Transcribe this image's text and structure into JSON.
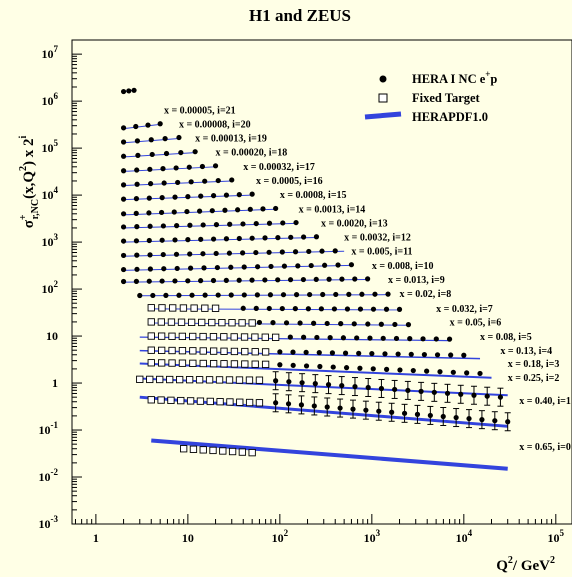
{
  "chart_data": {
    "type": "scatter",
    "title": "H1 and ZEUS",
    "ylabel": {
      "main": "σ",
      "sup": "+",
      "sub": "r,NC",
      "rest": "(x,Q",
      "sup2": "2",
      "rest2": ") x 2",
      "sup3": "i"
    },
    "xlabel": {
      "main": "Q",
      "sup": "2",
      "rest": "/ GeV",
      "sup2": "2"
    },
    "x_scale": "log",
    "y_scale": "log",
    "xlim": [
      0.55,
      150000
    ],
    "ylim": [
      0.001,
      20000000
    ],
    "x_ticks": [
      {
        "v": 1,
        "base": "1",
        "exp": ""
      },
      {
        "v": 10,
        "base": "10",
        "exp": ""
      },
      {
        "v": 100,
        "base": "10",
        "exp": "2"
      },
      {
        "v": 1000,
        "base": "10",
        "exp": "3"
      },
      {
        "v": 10000,
        "base": "10",
        "exp": "4"
      },
      {
        "v": 100000,
        "base": "10",
        "exp": "5"
      }
    ],
    "y_ticks": [
      {
        "v": 0.001,
        "base": "10",
        "exp": "-3"
      },
      {
        "v": 0.01,
        "base": "10",
        "exp": "-2"
      },
      {
        "v": 0.1,
        "base": "10",
        "exp": "-1"
      },
      {
        "v": 1,
        "base": "1",
        "exp": ""
      },
      {
        "v": 10,
        "base": "10",
        "exp": ""
      },
      {
        "v": 100,
        "base": "10",
        "exp": "2"
      },
      {
        "v": 1000,
        "base": "10",
        "exp": "3"
      },
      {
        "v": 10000,
        "base": "10",
        "exp": "4"
      },
      {
        "v": 100000,
        "base": "10",
        "exp": "5"
      },
      {
        "v": 1000000,
        "base": "10",
        "exp": "6"
      },
      {
        "v": 10000000,
        "base": "10",
        "exp": "7"
      }
    ],
    "legend": {
      "placement": "top-right",
      "items": [
        {
          "kind": "hera",
          "label": "HERA I NC e",
          "sup": "+",
          "tail": "p"
        },
        {
          "kind": "fixed",
          "label": "Fixed Target",
          "sup": "",
          "tail": ""
        },
        {
          "kind": "pdf",
          "label": "HERAPDF1.0",
          "sup": "",
          "tail": ""
        }
      ]
    },
    "colors": {
      "background": "#ffffe6",
      "band": "#3344dd",
      "markers": "#000000"
    },
    "series": [
      {
        "label": "x = 0.65, i=0",
        "scaled": 0.045,
        "label_q2": 40000,
        "curve": [
          [
            4,
            0.06
          ],
          [
            30000,
            0.015
          ]
        ],
        "band_w": 4,
        "fixed": [
          [
            9,
            0.04
          ],
          [
            50,
            0.033
          ]
        ],
        "hera": [
          [
            650,
            0.02
          ],
          [
            5000,
            0.015
          ],
          [
            30000,
            0.013
          ]
        ],
        "err": true
      },
      {
        "label": "x = 0.40, i=1",
        "scaled": 0.42,
        "label_q2": 40000,
        "curve": [
          [
            3,
            0.5
          ],
          [
            30000,
            0.12
          ]
        ],
        "band_w": 3,
        "fixed": [
          [
            4,
            0.44
          ],
          [
            60,
            0.38
          ]
        ],
        "hera": [
          [
            90,
            0.38
          ],
          [
            30000,
            0.15
          ]
        ],
        "err": true
      },
      {
        "label": "x = 0.25, i=2",
        "scaled": 1.3,
        "label_q2": 30000,
        "curve": [
          [
            3,
            1.25
          ],
          [
            30000,
            0.55
          ]
        ],
        "band_w": 2,
        "fixed": [
          [
            3,
            1.2
          ],
          [
            60,
            1.15
          ]
        ],
        "hera": [
          [
            90,
            1.12
          ],
          [
            25000,
            0.5
          ]
        ],
        "err": true
      },
      {
        "label": "x = 0.18, i=3",
        "scaled": 2.6,
        "label_q2": 30000,
        "curve": [
          [
            3,
            2.6
          ],
          [
            20000,
            1.3
          ]
        ],
        "band_w": 2,
        "fixed": [
          [
            4,
            2.7
          ],
          [
            70,
            2.5
          ]
        ],
        "hera": [
          [
            100,
            2.45
          ],
          [
            15000,
            1.6
          ]
        ],
        "err": false
      },
      {
        "label": "x = 0.13, i=4",
        "scaled": 4.9,
        "label_q2": 25000,
        "curve": [
          [
            3,
            4.9
          ],
          [
            15000,
            3.3
          ]
        ],
        "band_w": 1.5,
        "fixed": [
          [
            4,
            5.0
          ],
          [
            70,
            4.6
          ]
        ],
        "hera": [
          [
            100,
            4.6
          ],
          [
            10000,
            3.9
          ]
        ],
        "err": false
      },
      {
        "label": "x = 0.08, i=5",
        "scaled": 9.8,
        "label_q2": 15000,
        "curve": [
          [
            3,
            9.5
          ],
          [
            7000,
            8.0
          ]
        ],
        "band_w": 1.2,
        "fixed": [
          [
            4,
            10
          ],
          [
            90,
            9.4
          ]
        ],
        "hera": [
          [
            130,
            9.5
          ],
          [
            7000,
            8.6
          ]
        ],
        "err": false
      },
      {
        "label": "x = 0.05, i=6",
        "scaled": 20,
        "label_q2": 7000,
        "curve": [
          [
            4,
            19
          ],
          [
            2500,
            17
          ]
        ],
        "band_w": 1,
        "fixed": [
          [
            4,
            20
          ],
          [
            50,
            19
          ]
        ],
        "hera": [
          [
            60,
            19.5
          ],
          [
            2500,
            17.5
          ]
        ],
        "err": false
      },
      {
        "label": "x = 0.032, i=7",
        "scaled": 39,
        "label_q2": 5000,
        "curve": [
          [
            4,
            38
          ],
          [
            2000,
            36
          ]
        ],
        "band_w": 1,
        "fixed": [
          [
            4,
            40
          ],
          [
            20,
            39
          ]
        ],
        "hera": [
          [
            40,
            39
          ],
          [
            2000,
            37
          ]
        ],
        "err": false
      },
      {
        "label": "x = 0.02, i=8",
        "scaled": 80,
        "label_q2": 2000,
        "curve": [
          [
            3,
            72
          ],
          [
            1500,
            76
          ]
        ],
        "band_w": 1,
        "fixed": [],
        "hera": [
          [
            3,
            73
          ],
          [
            1500,
            78
          ]
        ],
        "err": false
      },
      {
        "label": "x = 0.013, i=9",
        "scaled": 160,
        "label_q2": 1500,
        "curve": [
          [
            2,
            140
          ],
          [
            900,
            160
          ]
        ],
        "band_w": 1,
        "fixed": [],
        "hera": [
          [
            2,
            145
          ],
          [
            900,
            165
          ]
        ],
        "err": false
      },
      {
        "label": "x = 0.008, i=10",
        "scaled": 320,
        "label_q2": 1000,
        "curve": [
          [
            2,
            250
          ],
          [
            600,
            320
          ]
        ],
        "band_w": 1,
        "fixed": [],
        "hera": [
          [
            2,
            260
          ],
          [
            600,
            330
          ]
        ],
        "err": false
      },
      {
        "label": "x = 0.005, i=11",
        "scaled": 640,
        "label_q2": 600,
        "curve": [
          [
            2,
            500
          ],
          [
            500,
            640
          ]
        ],
        "band_w": 1,
        "fixed": [],
        "hera": [
          [
            2,
            520
          ],
          [
            400,
            650
          ]
        ],
        "err": false
      },
      {
        "label": "x = 0.0032, i=12",
        "scaled": 1280,
        "label_q2": 500,
        "curve": [
          [
            2,
            1000
          ],
          [
            250,
            1250
          ]
        ],
        "band_w": 1,
        "fixed": [],
        "hera": [
          [
            2,
            1050
          ],
          [
            250,
            1300
          ]
        ],
        "err": false
      },
      {
        "label": "x = 0.0020, i=13",
        "scaled": 2560,
        "label_q2": 280,
        "curve": [
          [
            2,
            2000
          ],
          [
            150,
            2500
          ]
        ],
        "band_w": 1,
        "fixed": [],
        "hera": [
          [
            2,
            2100
          ],
          [
            150,
            2600
          ]
        ],
        "err": false
      },
      {
        "label": "x = 0.0013, i=14",
        "scaled": 5120,
        "label_q2": 160,
        "curve": [
          [
            2,
            3800
          ],
          [
            90,
            5000
          ]
        ],
        "band_w": 1,
        "fixed": [],
        "hera": [
          [
            2,
            4000
          ],
          [
            90,
            5200
          ]
        ],
        "err": false
      },
      {
        "label": "x = 0.0008, i=15",
        "scaled": 10240,
        "label_q2": 100,
        "curve": [
          [
            2,
            8000
          ],
          [
            50,
            10000
          ]
        ],
        "band_w": 1,
        "fixed": [],
        "hera": [
          [
            2,
            8200
          ],
          [
            50,
            10500
          ]
        ],
        "err": false
      },
      {
        "label": "x = 0.0005, i=16",
        "scaled": 20480,
        "label_q2": 55,
        "curve": [
          [
            2,
            16000
          ],
          [
            30,
            20000
          ]
        ],
        "band_w": 1,
        "fixed": [],
        "hera": [
          [
            2,
            16500
          ],
          [
            30,
            21000
          ]
        ],
        "err": false
      },
      {
        "label": "x = 0.00032, i=17",
        "scaled": 40960,
        "label_q2": 40,
        "curve": [
          [
            2,
            32000
          ],
          [
            20,
            40000
          ]
        ],
        "band_w": 1,
        "fixed": [],
        "hera": [
          [
            2,
            33000
          ],
          [
            20,
            42000
          ]
        ],
        "err": false
      },
      {
        "label": "x = 0.00020, i=18",
        "scaled": 81920,
        "label_q2": 20,
        "curve": [
          [
            2,
            65000
          ],
          [
            12,
            80000
          ]
        ],
        "band_w": 1,
        "fixed": [],
        "hera": [
          [
            2,
            67000
          ],
          [
            12,
            84000
          ]
        ],
        "err": false
      },
      {
        "label": "x = 0.00013, i=19",
        "scaled": 163840,
        "label_q2": 12,
        "curve": [
          [
            2,
            130000
          ],
          [
            8,
            160000
          ]
        ],
        "band_w": 1,
        "fixed": [],
        "hera": [
          [
            2,
            135000
          ],
          [
            8,
            168000
          ]
        ],
        "err": false
      },
      {
        "label": "x = 0.00008, i=20",
        "scaled": 327680,
        "label_q2": 8,
        "curve": [
          [
            2,
            260000
          ],
          [
            5,
            320000
          ]
        ],
        "band_w": 1,
        "fixed": [],
        "hera": [
          [
            2,
            270000
          ],
          [
            5,
            330000
          ]
        ],
        "err": false
      },
      {
        "label": "x = 0.00005, i=21",
        "scaled": 655360,
        "label_q2": 5.5,
        "curve": [
          [
            2,
            1600000
          ],
          [
            2.6,
            1700000
          ]
        ],
        "band_w": 1,
        "fixed": [],
        "hera": [
          [
            2,
            1600000
          ],
          [
            2.6,
            1700000
          ]
        ],
        "err": false
      }
    ]
  }
}
